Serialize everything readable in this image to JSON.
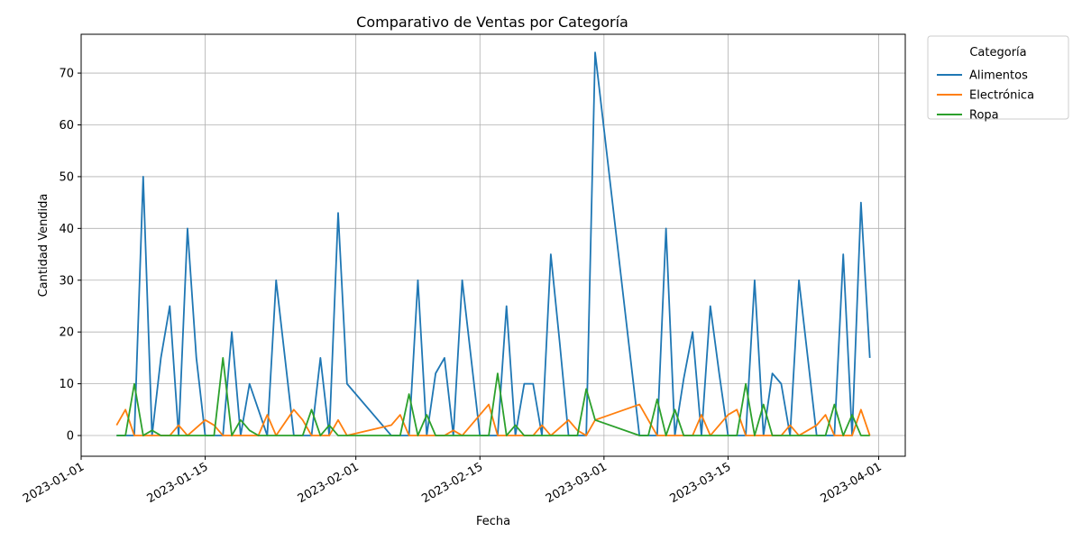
{
  "chart_data": {
    "type": "line",
    "title": "Comparativo de Ventas por Categoría",
    "xlabel": "Fecha",
    "ylabel": "Cantidad Vendida",
    "grid": true,
    "legend": {
      "title": "Categoría",
      "placement": "outside-top-right"
    },
    "xlim": [
      "2023-01-01",
      "2023-04-04"
    ],
    "ylim": [
      -4,
      77.5
    ],
    "x_ticks": [
      {
        "date": "2023-01-01",
        "label": "2023-01-01"
      },
      {
        "date": "2023-01-15",
        "label": "2023-01-15"
      },
      {
        "date": "2023-02-01",
        "label": "2023-02-01"
      },
      {
        "date": "2023-02-15",
        "label": "2023-02-15"
      },
      {
        "date": "2023-03-01",
        "label": "2023-03-01"
      },
      {
        "date": "2023-03-15",
        "label": "2023-03-15"
      },
      {
        "date": "2023-04-01",
        "label": "2023-04-01"
      }
    ],
    "y_ticks": [
      0,
      10,
      20,
      30,
      40,
      50,
      60,
      70
    ],
    "series": [
      {
        "name": "Alimentos",
        "color": "#1f77b4",
        "points": [
          [
            "2023-01-05",
            0
          ],
          [
            "2023-01-06",
            0
          ],
          [
            "2023-01-07",
            0
          ],
          [
            "2023-01-08",
            50
          ],
          [
            "2023-01-09",
            0
          ],
          [
            "2023-01-10",
            15
          ],
          [
            "2023-01-11",
            25
          ],
          [
            "2023-01-12",
            0
          ],
          [
            "2023-01-13",
            40
          ],
          [
            "2023-01-14",
            15
          ],
          [
            "2023-01-15",
            0
          ],
          [
            "2023-01-16",
            0
          ],
          [
            "2023-01-17",
            0
          ],
          [
            "2023-01-18",
            20
          ],
          [
            "2023-01-19",
            0
          ],
          [
            "2023-01-20",
            10
          ],
          [
            "2023-01-21",
            5
          ],
          [
            "2023-01-22",
            0
          ],
          [
            "2023-01-23",
            30
          ],
          [
            "2023-01-24",
            15
          ],
          [
            "2023-01-25",
            0
          ],
          [
            "2023-01-26",
            0
          ],
          [
            "2023-01-27",
            0
          ],
          [
            "2023-01-28",
            15
          ],
          [
            "2023-01-29",
            0
          ],
          [
            "2023-01-30",
            43
          ],
          [
            "2023-01-31",
            10
          ],
          [
            "2023-02-05",
            0
          ],
          [
            "2023-02-06",
            0
          ],
          [
            "2023-02-07",
            0
          ],
          [
            "2023-02-08",
            30
          ],
          [
            "2023-02-09",
            0
          ],
          [
            "2023-02-10",
            12
          ],
          [
            "2023-02-11",
            15
          ],
          [
            "2023-02-12",
            0
          ],
          [
            "2023-02-13",
            30
          ],
          [
            "2023-02-14",
            15
          ],
          [
            "2023-02-15",
            0
          ],
          [
            "2023-02-16",
            0
          ],
          [
            "2023-02-17",
            0
          ],
          [
            "2023-02-18",
            25
          ],
          [
            "2023-02-19",
            0
          ],
          [
            "2023-02-20",
            10
          ],
          [
            "2023-02-21",
            10
          ],
          [
            "2023-02-22",
            0
          ],
          [
            "2023-02-23",
            35
          ],
          [
            "2023-02-24",
            18
          ],
          [
            "2023-02-25",
            0
          ],
          [
            "2023-02-26",
            0
          ],
          [
            "2023-02-27",
            0
          ],
          [
            "2023-02-28",
            74
          ],
          [
            "2023-03-05",
            0
          ],
          [
            "2023-03-06",
            0
          ],
          [
            "2023-03-07",
            0
          ],
          [
            "2023-03-08",
            40
          ],
          [
            "2023-03-09",
            0
          ],
          [
            "2023-03-10",
            11
          ],
          [
            "2023-03-11",
            20
          ],
          [
            "2023-03-12",
            0
          ],
          [
            "2023-03-13",
            25
          ],
          [
            "2023-03-14",
            12
          ],
          [
            "2023-03-15",
            0
          ],
          [
            "2023-03-16",
            0
          ],
          [
            "2023-03-17",
            0
          ],
          [
            "2023-03-18",
            30
          ],
          [
            "2023-03-19",
            0
          ],
          [
            "2023-03-20",
            12
          ],
          [
            "2023-03-21",
            10
          ],
          [
            "2023-03-22",
            0
          ],
          [
            "2023-03-23",
            30
          ],
          [
            "2023-03-24",
            15
          ],
          [
            "2023-03-25",
            0
          ],
          [
            "2023-03-26",
            0
          ],
          [
            "2023-03-27",
            0
          ],
          [
            "2023-03-28",
            35
          ],
          [
            "2023-03-29",
            0
          ],
          [
            "2023-03-30",
            45
          ],
          [
            "2023-03-31",
            15
          ]
        ]
      },
      {
        "name": "Electrónica",
        "color": "#ff7f0e",
        "points": [
          [
            "2023-01-05",
            2
          ],
          [
            "2023-01-06",
            5
          ],
          [
            "2023-01-07",
            0
          ],
          [
            "2023-01-08",
            0
          ],
          [
            "2023-01-09",
            0
          ],
          [
            "2023-01-10",
            0
          ],
          [
            "2023-01-11",
            0
          ],
          [
            "2023-01-12",
            2
          ],
          [
            "2023-01-13",
            0
          ],
          [
            "2023-01-15",
            3
          ],
          [
            "2023-01-16",
            2
          ],
          [
            "2023-01-17",
            0
          ],
          [
            "2023-01-18",
            0
          ],
          [
            "2023-01-19",
            0
          ],
          [
            "2023-01-20",
            0
          ],
          [
            "2023-01-21",
            0
          ],
          [
            "2023-01-22",
            4
          ],
          [
            "2023-01-23",
            0
          ],
          [
            "2023-01-25",
            5
          ],
          [
            "2023-01-26",
            3
          ],
          [
            "2023-01-27",
            0
          ],
          [
            "2023-01-28",
            0
          ],
          [
            "2023-01-29",
            0
          ],
          [
            "2023-01-30",
            3
          ],
          [
            "2023-01-31",
            0
          ],
          [
            "2023-02-05",
            2
          ],
          [
            "2023-02-06",
            4
          ],
          [
            "2023-02-07",
            0
          ],
          [
            "2023-02-08",
            0
          ],
          [
            "2023-02-09",
            0
          ],
          [
            "2023-02-10",
            0
          ],
          [
            "2023-02-11",
            0
          ],
          [
            "2023-02-12",
            1
          ],
          [
            "2023-02-13",
            0
          ],
          [
            "2023-02-16",
            6
          ],
          [
            "2023-02-17",
            0
          ],
          [
            "2023-02-18",
            0
          ],
          [
            "2023-02-19",
            0
          ],
          [
            "2023-02-20",
            0
          ],
          [
            "2023-02-21",
            0
          ],
          [
            "2023-02-22",
            2
          ],
          [
            "2023-02-23",
            0
          ],
          [
            "2023-02-25",
            3
          ],
          [
            "2023-02-26",
            1
          ],
          [
            "2023-02-27",
            0
          ],
          [
            "2023-02-28",
            3
          ],
          [
            "2023-03-05",
            6
          ],
          [
            "2023-03-06",
            3
          ],
          [
            "2023-03-07",
            0
          ],
          [
            "2023-03-08",
            0
          ],
          [
            "2023-03-09",
            0
          ],
          [
            "2023-03-10",
            0
          ],
          [
            "2023-03-11",
            0
          ],
          [
            "2023-03-12",
            4
          ],
          [
            "2023-03-13",
            0
          ],
          [
            "2023-03-15",
            4
          ],
          [
            "2023-03-16",
            5
          ],
          [
            "2023-03-17",
            0
          ],
          [
            "2023-03-18",
            0
          ],
          [
            "2023-03-19",
            0
          ],
          [
            "2023-03-20",
            0
          ],
          [
            "2023-03-21",
            0
          ],
          [
            "2023-03-22",
            2
          ],
          [
            "2023-03-23",
            0
          ],
          [
            "2023-03-25",
            2
          ],
          [
            "2023-03-26",
            4
          ],
          [
            "2023-03-27",
            0
          ],
          [
            "2023-03-28",
            0
          ],
          [
            "2023-03-29",
            0
          ],
          [
            "2023-03-30",
            5
          ],
          [
            "2023-03-31",
            0
          ]
        ]
      },
      {
        "name": "Ropa",
        "color": "#2ca02c",
        "points": [
          [
            "2023-01-05",
            0
          ],
          [
            "2023-01-06",
            0
          ],
          [
            "2023-01-07",
            10
          ],
          [
            "2023-01-08",
            0
          ],
          [
            "2023-01-09",
            1
          ],
          [
            "2023-01-10",
            0
          ],
          [
            "2023-01-11",
            0
          ],
          [
            "2023-01-12",
            0
          ],
          [
            "2023-01-13",
            0
          ],
          [
            "2023-01-14",
            0
          ],
          [
            "2023-01-15",
            0
          ],
          [
            "2023-01-16",
            0
          ],
          [
            "2023-01-17",
            15
          ],
          [
            "2023-01-18",
            0
          ],
          [
            "2023-01-19",
            3
          ],
          [
            "2023-01-20",
            1
          ],
          [
            "2023-01-21",
            0
          ],
          [
            "2023-01-22",
            0
          ],
          [
            "2023-01-23",
            0
          ],
          [
            "2023-01-24",
            0
          ],
          [
            "2023-01-25",
            0
          ],
          [
            "2023-01-26",
            0
          ],
          [
            "2023-01-27",
            5
          ],
          [
            "2023-01-28",
            0
          ],
          [
            "2023-01-29",
            2
          ],
          [
            "2023-01-30",
            0
          ],
          [
            "2023-01-31",
            0
          ],
          [
            "2023-02-05",
            0
          ],
          [
            "2023-02-06",
            0
          ],
          [
            "2023-02-07",
            8
          ],
          [
            "2023-02-08",
            0
          ],
          [
            "2023-02-09",
            4
          ],
          [
            "2023-02-10",
            0
          ],
          [
            "2023-02-11",
            0
          ],
          [
            "2023-02-12",
            0
          ],
          [
            "2023-02-13",
            0
          ],
          [
            "2023-02-14",
            0
          ],
          [
            "2023-02-15",
            0
          ],
          [
            "2023-02-16",
            0
          ],
          [
            "2023-02-17",
            12
          ],
          [
            "2023-02-18",
            0
          ],
          [
            "2023-02-19",
            2
          ],
          [
            "2023-02-20",
            0
          ],
          [
            "2023-02-21",
            0
          ],
          [
            "2023-02-22",
            0
          ],
          [
            "2023-02-23",
            0
          ],
          [
            "2023-02-24",
            0
          ],
          [
            "2023-02-25",
            0
          ],
          [
            "2023-02-26",
            0
          ],
          [
            "2023-02-27",
            9
          ],
          [
            "2023-02-28",
            3
          ],
          [
            "2023-03-05",
            0
          ],
          [
            "2023-03-06",
            0
          ],
          [
            "2023-03-07",
            7
          ],
          [
            "2023-03-08",
            0
          ],
          [
            "2023-03-09",
            5
          ],
          [
            "2023-03-10",
            0
          ],
          [
            "2023-03-11",
            0
          ],
          [
            "2023-03-12",
            0
          ],
          [
            "2023-03-13",
            0
          ],
          [
            "2023-03-14",
            0
          ],
          [
            "2023-03-15",
            0
          ],
          [
            "2023-03-16",
            0
          ],
          [
            "2023-03-17",
            10
          ],
          [
            "2023-03-18",
            0
          ],
          [
            "2023-03-19",
            6
          ],
          [
            "2023-03-20",
            0
          ],
          [
            "2023-03-21",
            0
          ],
          [
            "2023-03-22",
            0
          ],
          [
            "2023-03-23",
            0
          ],
          [
            "2023-03-24",
            0
          ],
          [
            "2023-03-25",
            0
          ],
          [
            "2023-03-26",
            0
          ],
          [
            "2023-03-27",
            6
          ],
          [
            "2023-03-28",
            0
          ],
          [
            "2023-03-29",
            4
          ],
          [
            "2023-03-30",
            0
          ],
          [
            "2023-03-31",
            0
          ]
        ]
      }
    ]
  }
}
